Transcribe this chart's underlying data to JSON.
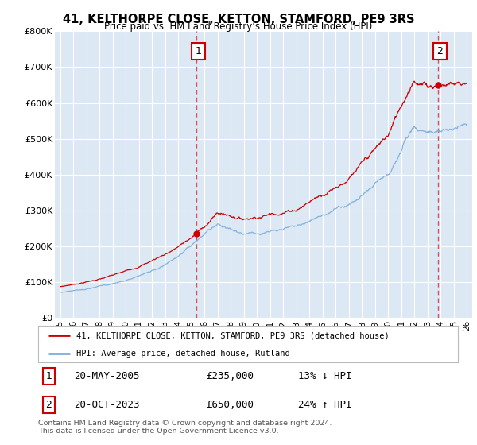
{
  "title": "41, KELTHORPE CLOSE, KETTON, STAMFORD, PE9 3RS",
  "subtitle": "Price paid vs. HM Land Registry’s House Price Index (HPI)",
  "ylim": [
    0,
    800000
  ],
  "yticks": [
    0,
    100000,
    200000,
    300000,
    400000,
    500000,
    600000,
    700000,
    800000
  ],
  "ytick_labels": [
    "£0",
    "£100K",
    "£200K",
    "£300K",
    "£400K",
    "£500K",
    "£600K",
    "£700K",
    "£800K"
  ],
  "background_color": "#ffffff",
  "plot_bg_color": "#dde8f5",
  "grid_color": "#ffffff",
  "sale1_date": 2005.37,
  "sale1_price": 235000,
  "sale1_label": "1",
  "sale2_date": 2023.8,
  "sale2_price": 650000,
  "sale2_label": "2",
  "legend_line1": "41, KELTHORPE CLOSE, KETTON, STAMFORD, PE9 3RS (detached house)",
  "legend_line2": "HPI: Average price, detached house, Rutland",
  "footer": "Contains HM Land Registry data © Crown copyright and database right 2024.\nThis data is licensed under the Open Government Licence v3.0.",
  "line_color_red": "#cc0000",
  "line_color_blue": "#7aaddb",
  "vline_color": "#dd3333",
  "box_edge_color": "#cc0000"
}
